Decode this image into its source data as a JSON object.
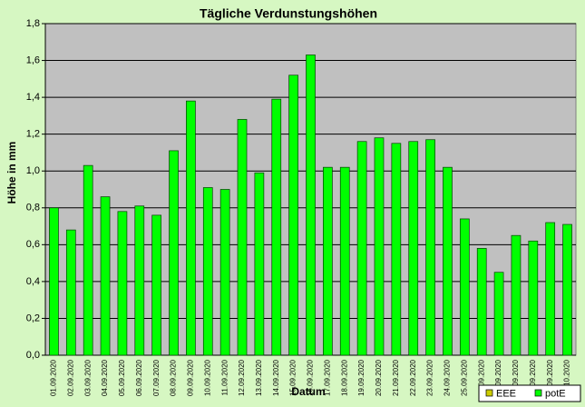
{
  "chart_data": {
    "type": "bar",
    "title": "Tägliche Verdunstungshöhen",
    "xlabel": "Datum",
    "ylabel": "Höhe in mm",
    "categories": [
      "01.09.2020",
      "02.09.2020",
      "03.09.2020",
      "04.09.2020",
      "05.09.2020",
      "06.09.2020",
      "07.09.2020",
      "08.09.2020",
      "09.09.2020",
      "10.09.2020",
      "11.09.2020",
      "12.09.2020",
      "13.09.2020",
      "14.09.2020",
      "15.09.2020",
      "16.09.2020",
      "17.09.2020",
      "18.09.2020",
      "19.09.2020",
      "20.09.2020",
      "21.09.2020",
      "22.09.2020",
      "23.09.2020",
      "24.09.2020",
      "25.09.2020",
      "26.09.2020",
      "27.09.2020",
      "28.09.2020",
      "29.09.2020",
      "30.09.2020",
      "01.10.2020"
    ],
    "series": [
      {
        "name": "EEE",
        "color": "#cccc00",
        "values": [
          null,
          null,
          null,
          null,
          null,
          null,
          null,
          null,
          null,
          null,
          null,
          null,
          null,
          null,
          null,
          null,
          null,
          null,
          null,
          null,
          null,
          null,
          null,
          null,
          null,
          null,
          null,
          null,
          null,
          null,
          null
        ]
      },
      {
        "name": "potE",
        "color": "#00ff00",
        "values": [
          0.8,
          0.68,
          1.03,
          0.86,
          0.78,
          0.81,
          0.76,
          1.11,
          1.38,
          0.91,
          0.9,
          1.28,
          0.99,
          1.39,
          1.52,
          1.63,
          1.02,
          1.02,
          1.16,
          1.18,
          1.15,
          1.16,
          1.17,
          1.02,
          0.74,
          0.58,
          0.45,
          0.65,
          0.62,
          0.72,
          0.71
        ]
      }
    ],
    "ylim": [
      0,
      1.8
    ],
    "yticks": [
      {
        "value": 0,
        "label": "0,0"
      },
      {
        "value": 0.2,
        "label": "0,2"
      },
      {
        "value": 0.4,
        "label": "0,4"
      },
      {
        "value": 0.6,
        "label": "0,6"
      },
      {
        "value": 0.8,
        "label": "0,8"
      },
      {
        "value": 1.0,
        "label": "1,0"
      },
      {
        "value": 1.2,
        "label": "1,2"
      },
      {
        "value": 1.4,
        "label": "1,4"
      },
      {
        "value": 1.6,
        "label": "1,6"
      },
      {
        "value": 1.8,
        "label": "1,8"
      }
    ],
    "grid": true,
    "legend": "bottom-right"
  }
}
